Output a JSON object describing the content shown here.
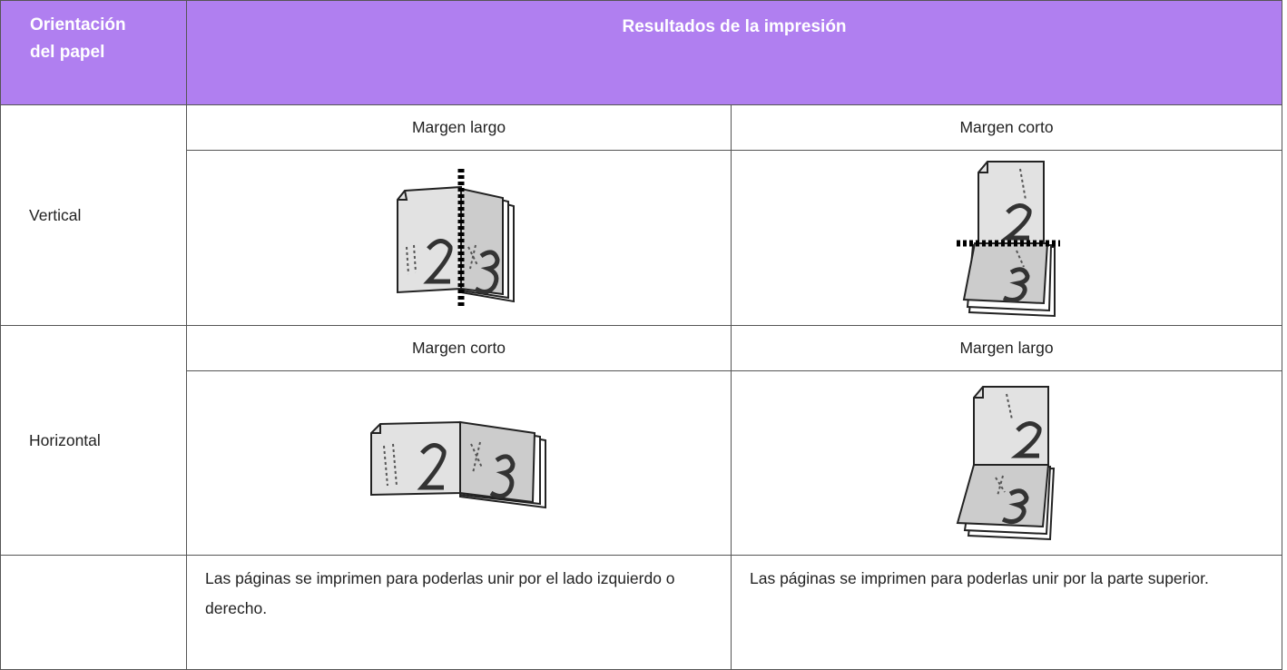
{
  "header": {
    "orientation": "Orientación del papel",
    "results": "Resultados de la impresión"
  },
  "rows": [
    {
      "orientation": "Vertical",
      "columns": [
        "Margen largo",
        "Margen corto"
      ]
    },
    {
      "orientation": "Horizontal",
      "columns": [
        "Margen corto",
        "Margen largo"
      ]
    }
  ],
  "notes": [
    "Las páginas se imprimen para poderlas unir por el lado izquierdo o derecho.",
    "Las páginas se imprimen para poderlas unir por la parte superior."
  ]
}
